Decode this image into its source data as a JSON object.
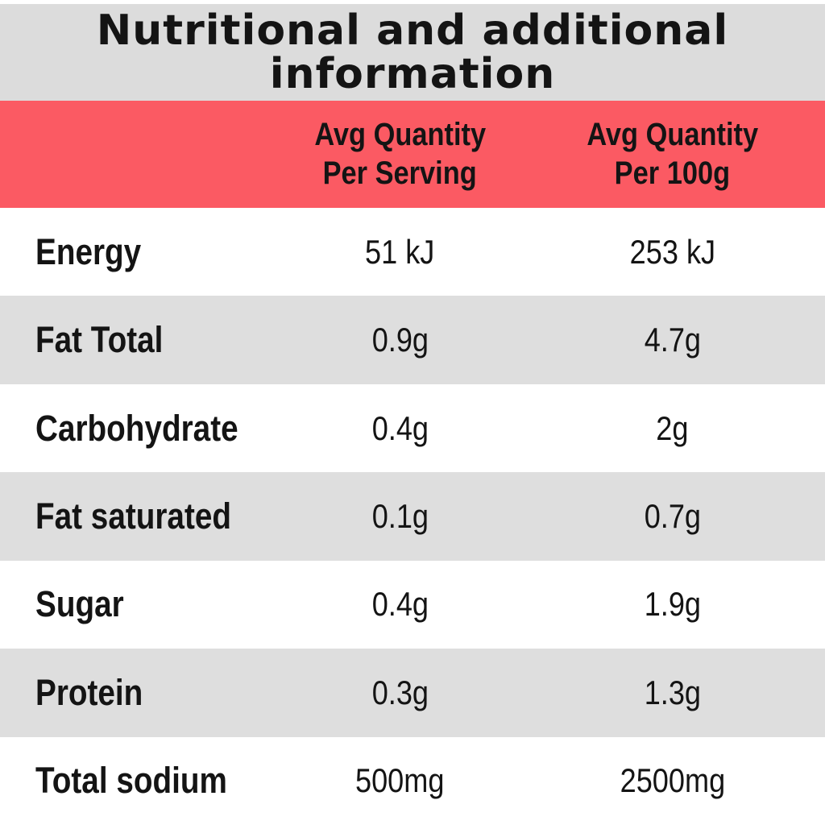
{
  "title": {
    "line1": "Nutritional and additional",
    "line2": "information"
  },
  "header": {
    "per_serving_line1": "Avg Quantity",
    "per_serving_line2": "Per Serving",
    "per_100g_line1": "Avg Quantity",
    "per_100g_line2": "Per 100g"
  },
  "rows": [
    {
      "label": "Energy",
      "per_serving": "51 kJ",
      "per_100g": "253 kJ"
    },
    {
      "label": "Fat Total",
      "per_serving": "0.9g",
      "per_100g": "4.7g"
    },
    {
      "label": "Carbohydrate",
      "per_serving": "0.4g",
      "per_100g": "2g"
    },
    {
      "label": "Fat saturated",
      "per_serving": "0.1g",
      "per_100g": "0.7g"
    },
    {
      "label": "Sugar",
      "per_serving": "0.4g",
      "per_100g": "1.9g"
    },
    {
      "label": "Protein",
      "per_serving": "0.3g",
      "per_100g": "1.3g"
    },
    {
      "label": "Total sodium",
      "per_serving": "500mg",
      "per_100g": "2500mg"
    }
  ],
  "colors": {
    "header_bg": "#fb5a63",
    "title_bg": "#dcdcdc",
    "row_bg": "#ffffff",
    "row_alt_bg": "#dedede",
    "text": "#141414"
  }
}
